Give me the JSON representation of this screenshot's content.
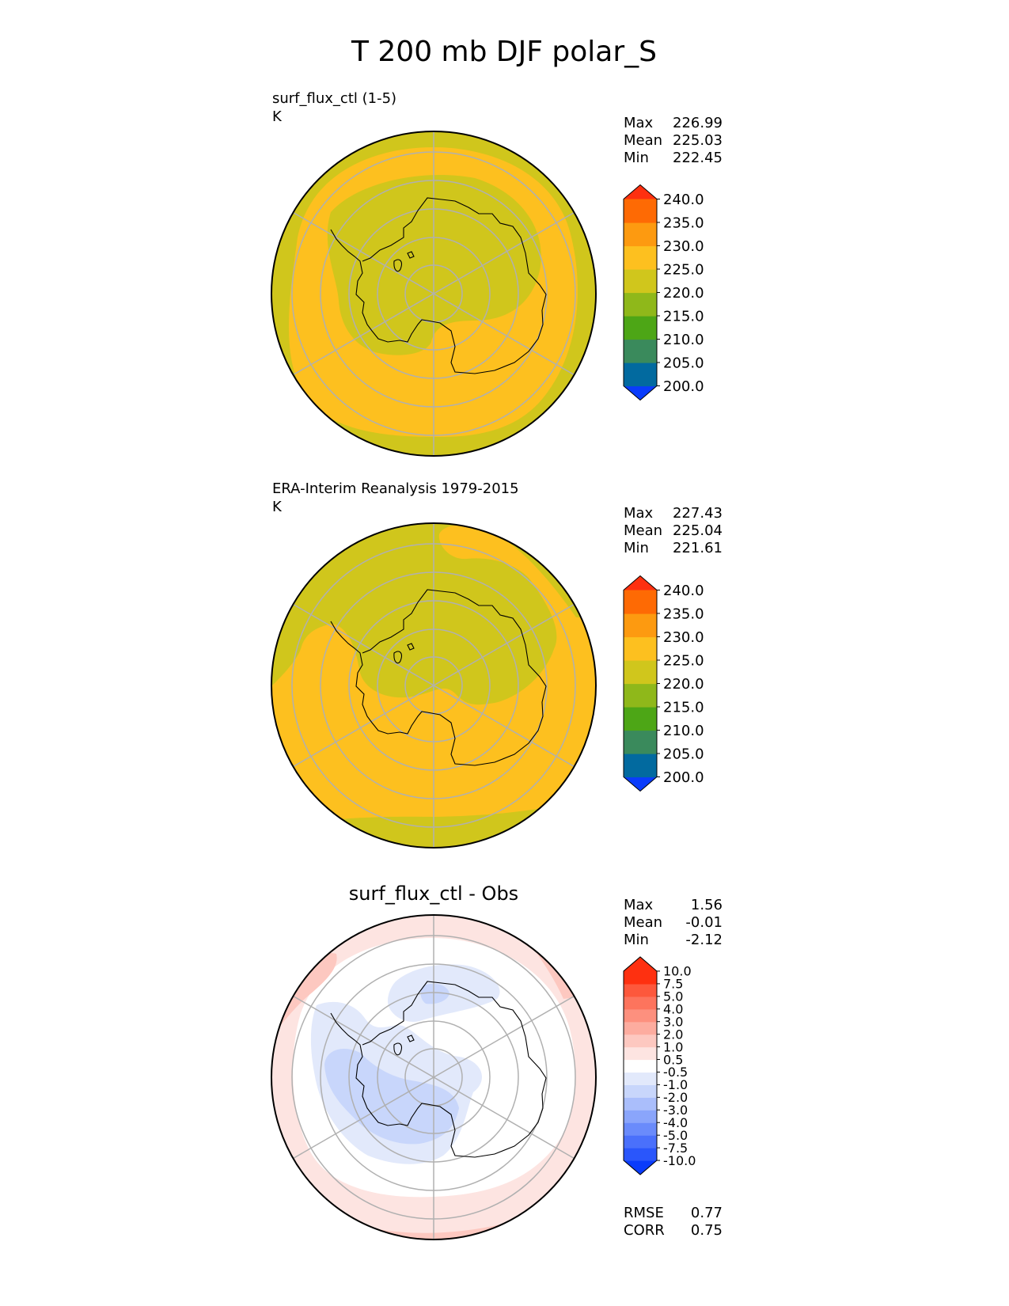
{
  "title": "T 200 mb DJF polar_S",
  "colors": {
    "coastline": "#000000",
    "grid": "#b0b0b0",
    "ocean_dark": "#d0c61c",
    "ocean_warm": "#fdc01f"
  },
  "chart_data": [
    {
      "type": "heatmap",
      "projection": "south-polar-stereographic",
      "label": "surf_flux_ctl (1-5)",
      "units": "K",
      "stats": [
        {
          "name": "Max",
          "value": "226.99"
        },
        {
          "name": "Mean",
          "value": "225.03"
        },
        {
          "name": "Min",
          "value": "222.45"
        }
      ],
      "colorbar": {
        "extend": "both",
        "boundaries": [
          200.0,
          205.0,
          210.0,
          215.0,
          220.0,
          225.0,
          230.0,
          235.0,
          240.0
        ],
        "tick_labels": [
          "200.0",
          "205.0",
          "210.0",
          "215.0",
          "220.0",
          "225.0",
          "230.0",
          "235.0",
          "240.0"
        ],
        "colors": [
          "#0a3cfb",
          "#026a9f",
          "#3a8a5c",
          "#4da616",
          "#8fb81a",
          "#d0c61c",
          "#fdc01f",
          "#fd9a10",
          "#fe6a04",
          "#fe3010"
        ]
      },
      "grid": true
    },
    {
      "type": "heatmap",
      "projection": "south-polar-stereographic",
      "label": "ERA-Interim Reanalysis 1979-2015",
      "units": "K",
      "stats": [
        {
          "name": "Max",
          "value": "227.43"
        },
        {
          "name": "Mean",
          "value": "225.04"
        },
        {
          "name": "Min",
          "value": "221.61"
        }
      ],
      "colorbar": {
        "extend": "both",
        "boundaries": [
          200.0,
          205.0,
          210.0,
          215.0,
          220.0,
          225.0,
          230.0,
          235.0,
          240.0
        ],
        "tick_labels": [
          "200.0",
          "205.0",
          "210.0",
          "215.0",
          "220.0",
          "225.0",
          "230.0",
          "235.0",
          "240.0"
        ],
        "colors": [
          "#0a3cfb",
          "#026a9f",
          "#3a8a5c",
          "#4da616",
          "#8fb81a",
          "#d0c61c",
          "#fdc01f",
          "#fd9a10",
          "#fe6a04",
          "#fe3010"
        ]
      },
      "grid": true
    },
    {
      "type": "heatmap",
      "projection": "south-polar-stereographic",
      "title": "surf_flux_ctl - Obs",
      "stats": [
        {
          "name": "Max",
          "value": "1.56"
        },
        {
          "name": "Mean",
          "value": "-0.01"
        },
        {
          "name": "Min",
          "value": "-2.12"
        }
      ],
      "metrics": [
        {
          "name": "RMSE",
          "value": "0.77"
        },
        {
          "name": "CORR",
          "value": "0.75"
        }
      ],
      "colorbar": {
        "extend": "both",
        "boundaries": [
          -10.0,
          -7.5,
          -5.0,
          -4.0,
          -3.0,
          -2.0,
          -1.0,
          -0.5,
          0.5,
          1.0,
          2.0,
          3.0,
          4.0,
          5.0,
          7.5,
          10.0
        ],
        "tick_labels": [
          "-10.0",
          "-7.5",
          "-5.0",
          "-4.0",
          "-3.0",
          "-2.0",
          "-1.0",
          "-0.5",
          "0.5",
          "1.0",
          "2.0",
          "3.0",
          "4.0",
          "5.0",
          "7.5",
          "10.0"
        ],
        "colors": [
          "#0a3cfb",
          "#2a56fb",
          "#4a70fb",
          "#6a8bfb",
          "#8aa5fb",
          "#aabefb",
          "#c8d6fb",
          "#e2e9fb",
          "#ffffff",
          "#fde4e1",
          "#fdc8c0",
          "#fdac9f",
          "#fd907e",
          "#fd745d",
          "#fd583c",
          "#fe3010"
        ]
      },
      "grid": true
    }
  ]
}
